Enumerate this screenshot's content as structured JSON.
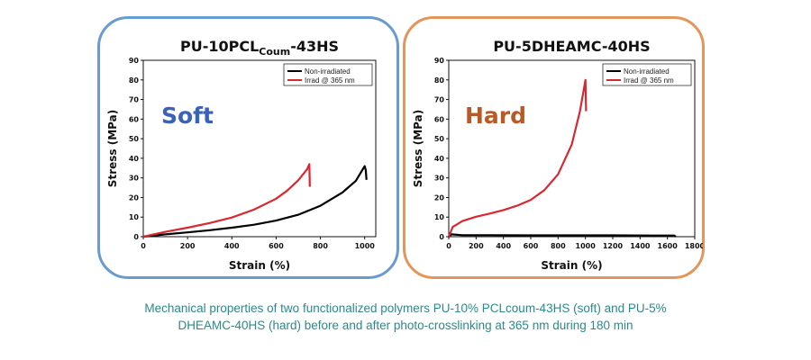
{
  "chart_data": [
    {
      "type": "line",
      "title": "PU-10PCL",
      "title_sub": "Coum",
      "title_suffix": "-43HS",
      "xlabel": "Strain (%)",
      "ylabel": "Stress (MPa)",
      "xlim": [
        0,
        1050
      ],
      "ylim": [
        0,
        90
      ],
      "xticks": [
        0,
        200,
        400,
        600,
        800,
        1000
      ],
      "yticks": [
        0,
        10,
        20,
        30,
        40,
        50,
        60,
        70,
        80,
        90
      ],
      "label": "Soft",
      "label_color": "#3a62b8",
      "legend_position": "top-right",
      "series": [
        {
          "name": "Non-irradiated",
          "color": "#000000",
          "x": [
            0,
            100,
            200,
            300,
            400,
            500,
            600,
            700,
            800,
            900,
            960,
            1000,
            1005,
            1008
          ],
          "y": [
            0,
            1.2,
            2.2,
            3.3,
            4.6,
            6.1,
            8.2,
            11.2,
            15.8,
            22.6,
            28.5,
            36.0,
            34.0,
            29.0
          ]
        },
        {
          "name": "Irrad @ 365 nm",
          "color": "#d9282f",
          "x": [
            0,
            100,
            200,
            300,
            400,
            500,
            600,
            650,
            700,
            740,
            750,
            752
          ],
          "y": [
            0,
            2.5,
            4.6,
            7.0,
            9.8,
            13.8,
            19.4,
            23.5,
            28.8,
            34.4,
            37.0,
            25.5
          ]
        }
      ]
    },
    {
      "type": "line",
      "title": "PU-5DHEAMC-40HS",
      "title_sub": "",
      "title_suffix": "",
      "xlabel": "Strain (%)",
      "ylabel": "Stress (MPa)",
      "xlim": [
        0,
        1800
      ],
      "ylim": [
        0,
        90
      ],
      "xticks": [
        0,
        200,
        400,
        600,
        800,
        1000,
        1200,
        1400,
        1600,
        1800
      ],
      "yticks": [
        0,
        10,
        20,
        30,
        40,
        50,
        60,
        70,
        80,
        90
      ],
      "label": "Hard",
      "label_color": "#b85a28",
      "legend_position": "top-right",
      "series": [
        {
          "name": "Non-irradiated",
          "color": "#000000",
          "x": [
            0,
            20,
            100,
            300,
            600,
            900,
            1200,
            1500,
            1650,
            1660
          ],
          "y": [
            0,
            1.2,
            0.8,
            0.8,
            0.7,
            0.7,
            0.7,
            0.6,
            0.6,
            0.0
          ]
        },
        {
          "name": "Irrad @ 365 nm",
          "color": "#d9282f",
          "x": [
            0,
            30,
            100,
            200,
            300,
            400,
            500,
            600,
            700,
            800,
            900,
            960,
            990,
            1000,
            1005
          ],
          "y": [
            0,
            5.0,
            8.0,
            10.2,
            11.8,
            13.6,
            15.8,
            18.8,
            23.8,
            31.8,
            47.0,
            64.0,
            76.0,
            80.0,
            64.0
          ]
        }
      ]
    }
  ],
  "caption": {
    "line1": "Mechanical properties of two functionalized polymers PU-10% PCLcoum-43HS (soft) and PU-5%",
    "line2": "DHEAMC-40HS (hard) before and after photo-crosslinking at 365 nm during 180 min"
  }
}
